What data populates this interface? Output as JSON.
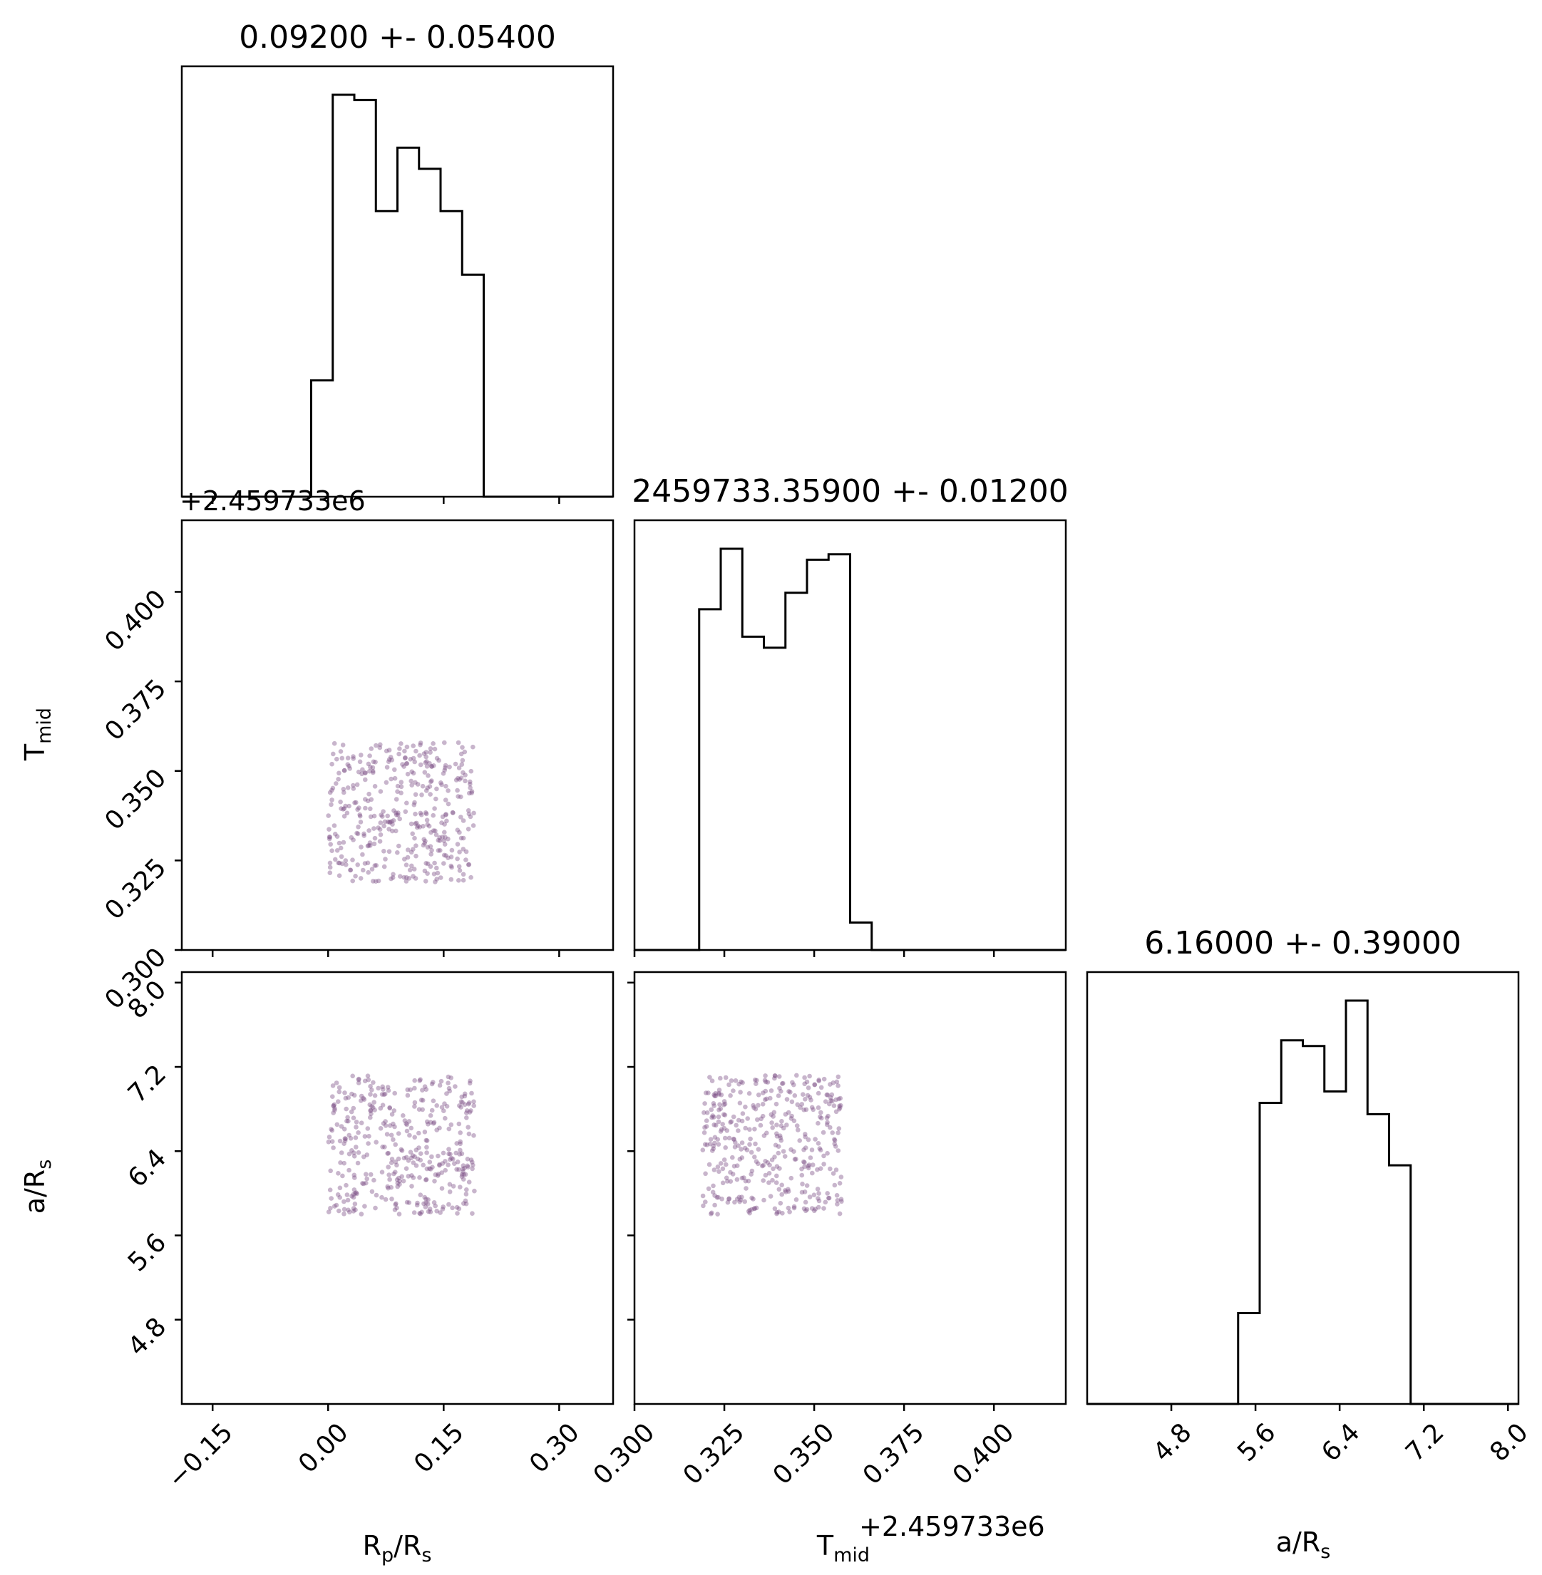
{
  "chart_data": {
    "type": "corner",
    "parameters": [
      {
        "key": "rp",
        "label": "R",
        "sub": "p",
        "label_tail": "/R",
        "sub_tail": "s",
        "range": [
          -0.19,
          0.37
        ],
        "ticks": [
          "−0.15",
          "0.00",
          "0.15",
          "0.30"
        ],
        "tick_values": [
          -0.15,
          0.0,
          0.15,
          0.3
        ]
      },
      {
        "key": "tmid",
        "label": "T",
        "sub": "mid",
        "label_tail": "",
        "sub_tail": "",
        "range": [
          0.3,
          0.42
        ],
        "ticks": [
          "0.300",
          "0.325",
          "0.350",
          "0.375",
          "0.400"
        ],
        "tick_values": [
          0.3,
          0.325,
          0.35,
          0.375,
          0.4
        ],
        "offset": "+2.459733e6"
      },
      {
        "key": "ars",
        "label": "a/R",
        "sub": "s",
        "label_tail": "",
        "sub_tail": "",
        "range": [
          4.0,
          8.1
        ],
        "ticks": [
          "4.8",
          "5.6",
          "6.4",
          "7.2",
          "8.0"
        ],
        "tick_values": [
          4.8,
          5.6,
          6.4,
          7.2,
          8.0
        ]
      }
    ],
    "titles": [
      "0.09200 +- 0.05400",
      "2459733.35900 +- 0.01200",
      "6.16000 +- 0.39000"
    ],
    "histograms": [
      {
        "param": "rp",
        "bin_edges": [
          -0.19,
          -0.162,
          -0.134,
          -0.106,
          -0.078,
          -0.05,
          -0.022,
          0.006,
          0.034,
          0.062,
          0.09,
          0.118,
          0.146,
          0.174,
          0.202,
          0.23,
          0.258,
          0.286,
          0.314,
          0.342,
          0.37
        ],
        "counts": [
          0,
          0,
          0,
          0,
          0,
          0,
          11,
          38,
          37.5,
          27,
          33,
          31,
          27,
          21,
          0,
          0,
          0,
          0,
          0,
          0
        ]
      },
      {
        "param": "tmid",
        "bin_edges": [
          0.3,
          0.306,
          0.312,
          0.318,
          0.324,
          0.33,
          0.336,
          0.342,
          0.348,
          0.354,
          0.36,
          0.366,
          0.372,
          0.378,
          0.384,
          0.39,
          0.396,
          0.402,
          0.408,
          0.414,
          0.42
        ],
        "counts": [
          0,
          0,
          0,
          31,
          36.5,
          28.5,
          27.5,
          32.5,
          35.5,
          36,
          2.5,
          0,
          0,
          0,
          0,
          0,
          0,
          0,
          0,
          0
        ]
      },
      {
        "param": "ars",
        "bin_edges": [
          4.0,
          4.205,
          4.41,
          4.615,
          4.82,
          5.025,
          5.23,
          5.435,
          5.64,
          5.845,
          6.05,
          6.255,
          6.46,
          6.665,
          6.87,
          7.075,
          7.28,
          7.485,
          7.69,
          7.895,
          8.1
        ],
        "counts": [
          0,
          0,
          0,
          0,
          0,
          0,
          0,
          8,
          26.5,
          32,
          31.5,
          27.5,
          35.5,
          25.5,
          21,
          0,
          0,
          0,
          0,
          0
        ]
      }
    ],
    "scatter": {
      "n_points": 400,
      "color": "#7b4e86",
      "bounds": {
        "rp": [
          0.0,
          0.19
        ],
        "tmid": [
          0.319,
          0.358
        ],
        "ars": [
          5.8,
          7.12
        ]
      }
    },
    "histogram_color": "#000000",
    "grid": false
  }
}
